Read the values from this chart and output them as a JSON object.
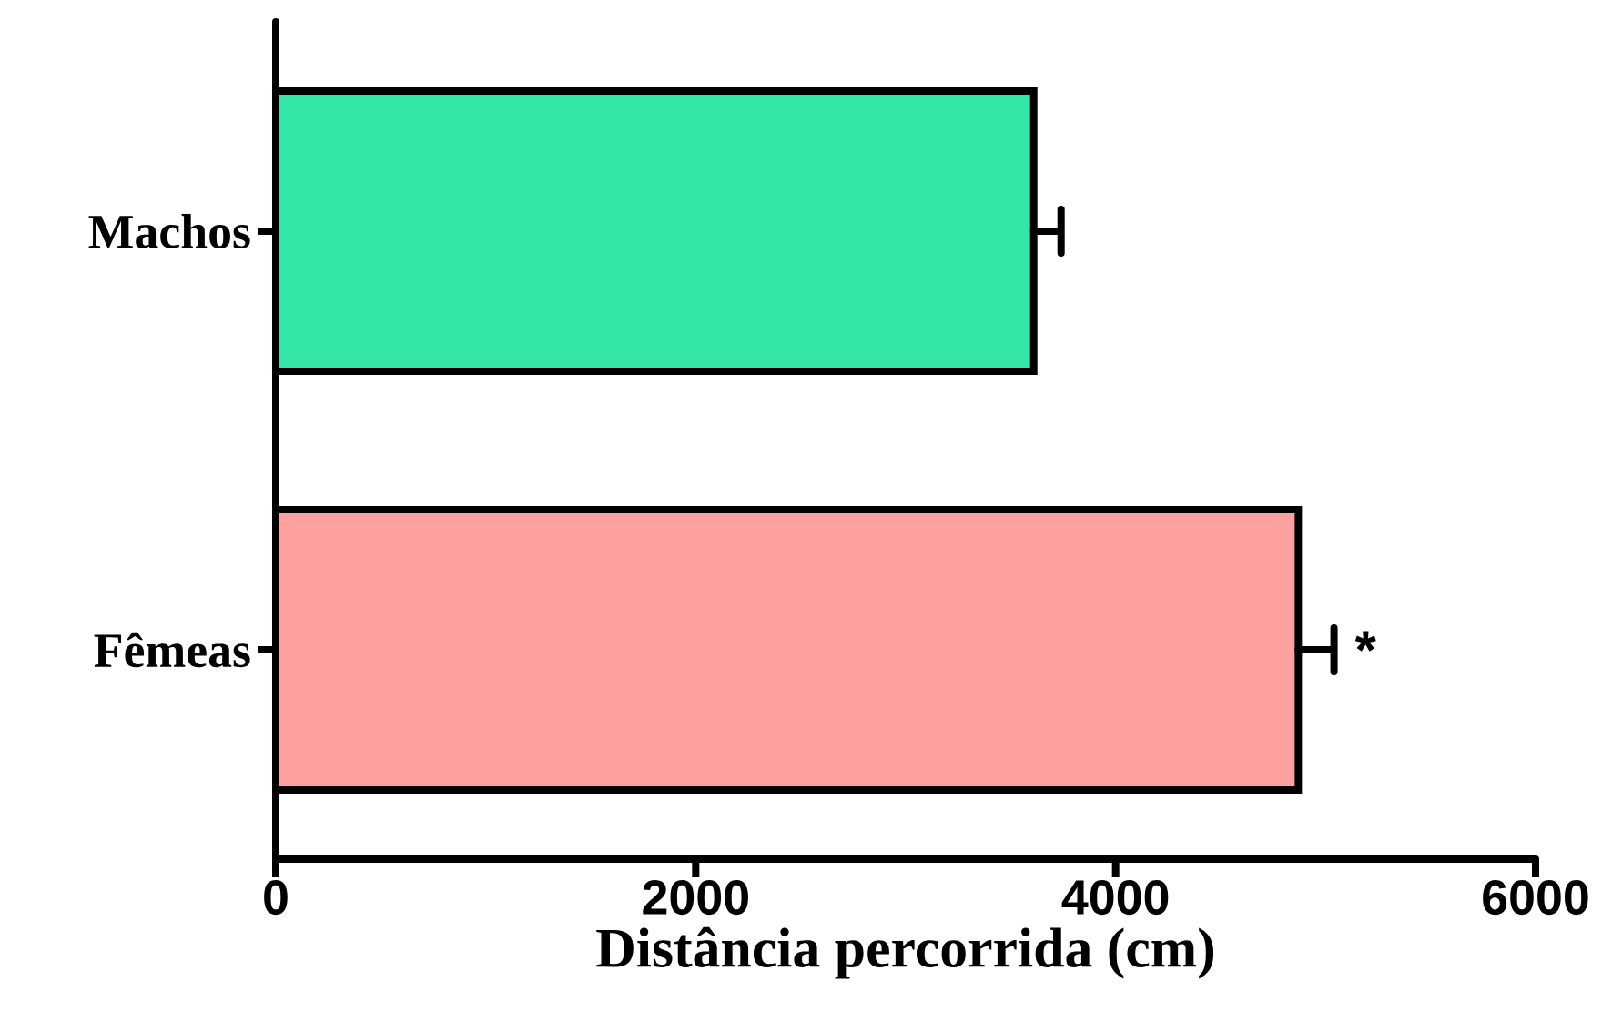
{
  "chart_data": {
    "type": "bar",
    "orientation": "horizontal",
    "xlabel": "Distância percorrida (cm)",
    "categories": [
      "Machos",
      "Fêmeas"
    ],
    "values": [
      3610,
      4870
    ],
    "colors": [
      "#33e6a6",
      "#fca0a0"
    ],
    "errors": [
      [
        3610,
        3740
      ],
      [
        4870,
        5040
      ]
    ],
    "xlim": [
      0,
      6000
    ],
    "xticks": [
      0,
      2000,
      4000,
      6000
    ],
    "annotations": [
      "*"
    ],
    "grid": false
  }
}
